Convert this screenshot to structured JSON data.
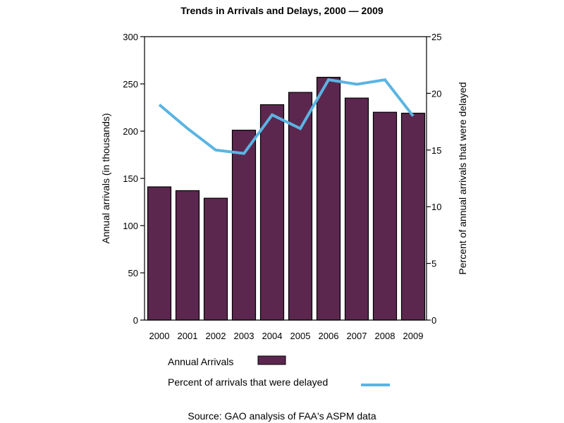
{
  "chart_data": {
    "type": "bar",
    "title": "Trends in Arrivals and Delays, 2000 — 2009",
    "categories": [
      "2000",
      "2001",
      "2002",
      "2003",
      "2004",
      "2005",
      "2006",
      "2007",
      "2008",
      "2009"
    ],
    "series": [
      {
        "name": "Annual Arrivals",
        "type": "bar",
        "axis": "left",
        "color": "#5c274f",
        "values": [
          141,
          137,
          129,
          201,
          228,
          241,
          257,
          235,
          220,
          219
        ]
      },
      {
        "name": "Percent of arrivals that were delayed",
        "type": "line",
        "axis": "right",
        "color": "#5ab4e2",
        "values": [
          19.0,
          16.9,
          15.0,
          14.7,
          18.1,
          16.9,
          21.2,
          20.8,
          21.2,
          18.0
        ]
      }
    ],
    "xlabel": "",
    "ylabel": "Annual arrivals (in thousands)",
    "ylabel_right": "Percent of annual arrivals that were delayed",
    "ylim": [
      0,
      300
    ],
    "ylim_right": [
      0,
      25
    ],
    "yticks": [
      "0",
      "50",
      "100",
      "150",
      "200",
      "250",
      "300"
    ],
    "yticks_right": [
      "0",
      "5",
      "10",
      "15",
      "20",
      "25"
    ],
    "grid": false,
    "legend_placement": "bottom",
    "legend": [
      {
        "label": "Annual Arrivals",
        "kind": "bar"
      },
      {
        "label": "Percent of arrivals that were delayed",
        "kind": "line"
      }
    ],
    "source": "Source: GAO analysis of FAA's ASPM data"
  }
}
